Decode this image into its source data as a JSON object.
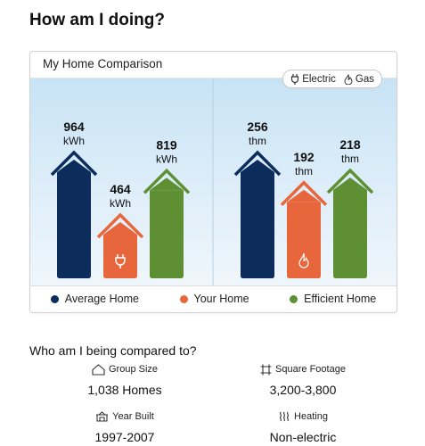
{
  "page": {
    "title": "How am I doing?"
  },
  "card": {
    "title": "My Home Comparison",
    "toggle": {
      "electric_label": "Electric",
      "gas_label": "Gas"
    }
  },
  "chart_data": {
    "type": "bar",
    "groups": [
      {
        "name": "Electric",
        "unit": "kWh",
        "icon": "plug-icon",
        "values": {
          "average": 964,
          "yours": 464,
          "efficient": 819
        }
      },
      {
        "name": "Gas",
        "unit": "thm",
        "icon": "flame-icon",
        "values": {
          "average": 256,
          "yours": 192,
          "efficient": 218
        }
      }
    ],
    "series": [
      {
        "key": "average",
        "name": "Average Home",
        "color": "#0c2d5c"
      },
      {
        "key": "yours",
        "name": "Your Home",
        "color": "#e8663c"
      },
      {
        "key": "efficient",
        "name": "Efficient Home",
        "color": "#5e8f32"
      }
    ]
  },
  "legend": {
    "items": [
      {
        "label": "Average Home",
        "color": "#0c2d5c"
      },
      {
        "label": "Your Home",
        "color": "#e8663c"
      },
      {
        "label": "Efficient Home",
        "color": "#5e8f32"
      }
    ]
  },
  "comparison": {
    "title": "Who am I being compared to?",
    "group_size": {
      "label": "Group Size",
      "value": "1,038 Homes",
      "icon": "house-outline-icon"
    },
    "square_footage": {
      "label": "Square Footage",
      "value": "3,200-3,800",
      "icon": "square-footage-icon"
    },
    "year_built": {
      "label": "Year Built",
      "value": "1997-2007",
      "icon": "building-icon"
    },
    "heating": {
      "label": "Heating",
      "value": "Non-electric",
      "icon": "heat-waves-icon"
    }
  }
}
